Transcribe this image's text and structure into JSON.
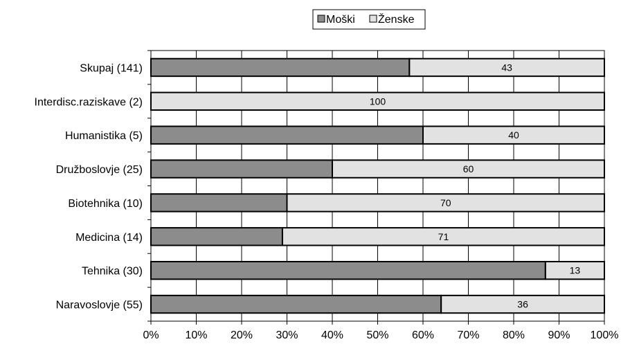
{
  "chart_data": {
    "type": "bar",
    "orientation": "horizontal",
    "stacked": "percent",
    "categories": [
      "Skupaj (141)",
      "Interdisc.raziskave (2)",
      "Humanistika (5)",
      "Družboslovje (25)",
      "Biotehnika (10)",
      "Medicina (14)",
      "Tehnika (30)",
      "Naravoslovje (55)"
    ],
    "series": [
      {
        "name": "Moški",
        "values": [
          57,
          0,
          60,
          40,
          30,
          29,
          87,
          64
        ],
        "color": "#8c8c8c",
        "show_labels": false
      },
      {
        "name": "Ženske",
        "values": [
          43,
          100,
          40,
          60,
          70,
          71,
          13,
          36
        ],
        "color": "#e2e2e2",
        "show_labels": true
      }
    ],
    "xlim": [
      0,
      100
    ],
    "xticks": [
      "0%",
      "10%",
      "20%",
      "30%",
      "40%",
      "50%",
      "60%",
      "70%",
      "80%",
      "90%",
      "100%"
    ],
    "grid": "vertical",
    "legend": "top-center",
    "title": "",
    "xlabel": "",
    "ylabel": ""
  }
}
